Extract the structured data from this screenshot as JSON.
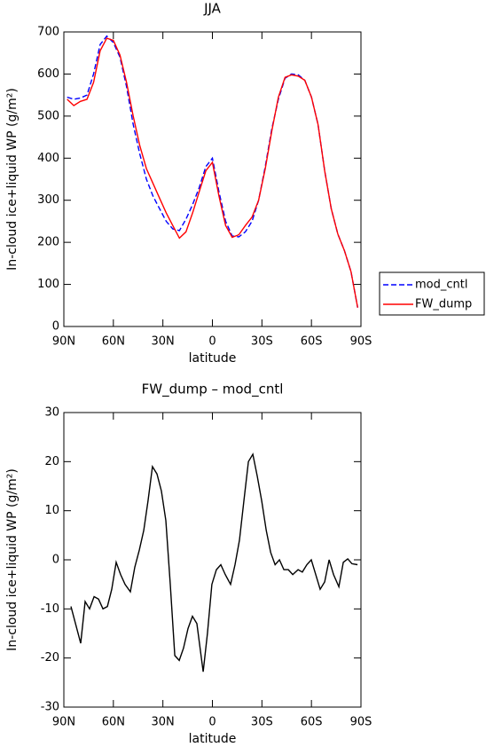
{
  "chart_data": [
    {
      "type": "line",
      "title": "JJA",
      "xlabel": "latitude",
      "ylabel": "In-cloud ice+liquid WP (g/m²)",
      "x": [
        88,
        84,
        80,
        76,
        72,
        68,
        64,
        60,
        56,
        52,
        48,
        44,
        40,
        36,
        32,
        28,
        24,
        20,
        16,
        12,
        8,
        4,
        0,
        -4,
        -8,
        -12,
        -16,
        -20,
        -24,
        -28,
        -32,
        -36,
        -40,
        -44,
        -48,
        -52,
        -56,
        -60,
        -64,
        -68,
        -72,
        -76,
        -80,
        -84,
        -88
      ],
      "series": [
        {
          "name": "mod_cntl",
          "color": "#0000ff",
          "style": "dashed",
          "values": [
            545,
            540,
            543,
            550,
            600,
            670,
            690,
            675,
            640,
            570,
            480,
            410,
            350,
            310,
            280,
            250,
            232,
            228,
            255,
            290,
            330,
            380,
            400,
            320,
            250,
            215,
            213,
            225,
            250,
            300,
            380,
            470,
            540,
            590,
            600,
            598,
            585,
            545,
            480,
            370,
            280,
            220,
            180,
            130,
            45
          ]
        },
        {
          "name": "FW_dump",
          "color": "#ff0000",
          "style": "solid",
          "values": [
            540,
            525,
            535,
            540,
            580,
            655,
            685,
            680,
            645,
            580,
            500,
            430,
            375,
            340,
            305,
            270,
            240,
            210,
            225,
            270,
            320,
            370,
            390,
            310,
            240,
            212,
            218,
            240,
            260,
            300,
            375,
            465,
            545,
            592,
            598,
            595,
            585,
            545,
            480,
            370,
            280,
            220,
            180,
            130,
            45
          ]
        }
      ],
      "xlim": [
        90,
        -90
      ],
      "xticks": [
        {
          "value": 90,
          "label": "90N"
        },
        {
          "value": 60,
          "label": "60N"
        },
        {
          "value": 30,
          "label": "30N"
        },
        0,
        {
          "value": -30,
          "label": "30S"
        },
        {
          "value": -60,
          "label": "60S"
        },
        {
          "value": -90,
          "label": "90S"
        }
      ],
      "ylim": [
        0,
        700
      ],
      "yticks": [
        0,
        100,
        200,
        300,
        400,
        500,
        600,
        700
      ],
      "legend": "outside right"
    },
    {
      "type": "line",
      "title": "FW_dump – mod_cntl",
      "xlabel": "latitude",
      "ylabel": "In-cloud ice+liquid WP (g/m²)",
      "x": [
        85.7,
        79.8,
        77.1,
        74.4,
        71.7,
        69.0,
        66.3,
        63.6,
        61.0,
        58.3,
        55.6,
        52.9,
        49.7,
        47.0,
        44.3,
        41.6,
        39.0,
        36.3,
        33.6,
        30.9,
        28.2,
        25.5,
        22.8,
        20.1,
        17.5,
        14.8,
        12.1,
        9.4,
        5.6,
        3.0,
        0.3,
        -2.4,
        -5.1,
        -7.8,
        -11.0,
        -13.7,
        -16.4,
        -19.1,
        -21.8,
        -24.5,
        -27.2,
        -29.9,
        -32.6,
        -35.3,
        -38.0,
        -40.6,
        -43.3,
        -46.0,
        -48.7,
        -51.9,
        -54.5,
        -57.2,
        -59.9,
        -62.6,
        -65.3,
        -68.0,
        -70.7,
        -73.4,
        -76.6,
        -79.3,
        -82.0,
        -84.6,
        -87.9
      ],
      "series": [
        {
          "color": "#000000",
          "style": "solid",
          "values": [
            -9.5,
            -17,
            -8.5,
            -10,
            -7.5,
            -8,
            -10,
            -9.5,
            -6,
            -0.5,
            -3,
            -5,
            -6.5,
            -1.5,
            2,
            6,
            12,
            19,
            17.5,
            14,
            8,
            -5,
            -19.5,
            -20.5,
            -18,
            -14,
            -11.5,
            -13,
            -22.8,
            -15,
            -5,
            -2,
            -1,
            -3,
            -5,
            -1,
            4,
            12,
            20,
            21.5,
            17,
            12,
            6,
            1.5,
            -1,
            0,
            -2,
            -2,
            -3,
            -2,
            -2.5,
            -1,
            0,
            -3,
            -6,
            -4.5,
            0,
            -3,
            -5.5,
            -0.5,
            0.2,
            -0.8,
            -1
          ]
        }
      ],
      "xlim": [
        90,
        -90
      ],
      "xticks": [
        {
          "value": 90,
          "label": "90N"
        },
        {
          "value": 60,
          "label": "60N"
        },
        {
          "value": 30,
          "label": "30N"
        },
        0,
        {
          "value": -30,
          "label": "30S"
        },
        {
          "value": -60,
          "label": "60S"
        },
        {
          "value": -90,
          "label": "90S"
        }
      ],
      "ylim": [
        -30,
        30
      ],
      "yticks": [
        -30,
        -20,
        -10,
        0,
        10,
        20,
        30
      ]
    }
  ]
}
